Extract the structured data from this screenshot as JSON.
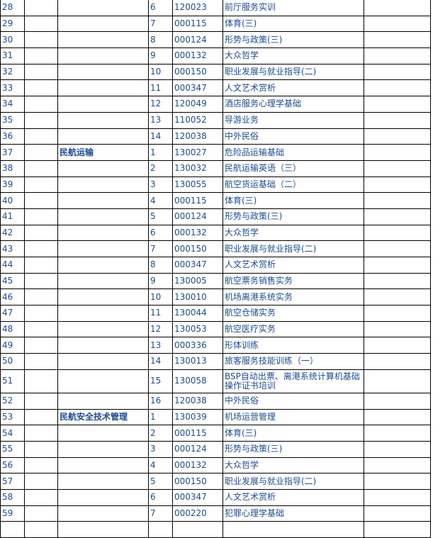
{
  "rows": [
    {
      "no": "28",
      "major": "",
      "seq": "6",
      "code": "120023",
      "course": "前厅服务实训"
    },
    {
      "no": "29",
      "major": "",
      "seq": "7",
      "code": "000115",
      "course": "体育(三)"
    },
    {
      "no": "30",
      "major": "",
      "seq": "8",
      "code": "000124",
      "course": "形势与政策(三)"
    },
    {
      "no": "31",
      "major": "",
      "seq": "9",
      "code": "000132",
      "course": "大众哲学"
    },
    {
      "no": "32",
      "major": "",
      "seq": "10",
      "code": "000150",
      "course": "职业发展与就业指导(二)"
    },
    {
      "no": "33",
      "major": "",
      "seq": "11",
      "code": "000347",
      "course": "人文艺术赏析"
    },
    {
      "no": "34",
      "major": "",
      "seq": "12",
      "code": "120049",
      "course": "酒店服务心理学基础"
    },
    {
      "no": "35",
      "major": "",
      "seq": "13",
      "code": "110052",
      "course": "导游业务"
    },
    {
      "no": "36",
      "major": "",
      "seq": "14",
      "code": "120038",
      "course": "中外民俗"
    },
    {
      "no": "37",
      "major": "民航运输",
      "seq": "1",
      "code": "130027",
      "course": "危险品运输基础"
    },
    {
      "no": "38",
      "major": "",
      "seq": "2",
      "code": "130032",
      "course": "民航运输英语（三）"
    },
    {
      "no": "39",
      "major": "",
      "seq": "3",
      "code": "130055",
      "course": "航空货运基础（二）"
    },
    {
      "no": "40",
      "major": "",
      "seq": "4",
      "code": "000115",
      "course": "体育(三)"
    },
    {
      "no": "41",
      "major": "",
      "seq": "5",
      "code": "000124",
      "course": "形势与政策(三)"
    },
    {
      "no": "42",
      "major": "",
      "seq": "6",
      "code": "000132",
      "course": "大众哲学"
    },
    {
      "no": "43",
      "major": "",
      "seq": "7",
      "code": "000150",
      "course": "职业发展与就业指导(二)"
    },
    {
      "no": "44",
      "major": "",
      "seq": "8",
      "code": "000347",
      "course": "人文艺术赏析"
    },
    {
      "no": "45",
      "major": "",
      "seq": "9",
      "code": "130005",
      "course": "航空票务销售实务"
    },
    {
      "no": "46",
      "major": "",
      "seq": "10",
      "code": "130010",
      "course": "机场离港系统实务"
    },
    {
      "no": "47",
      "major": "",
      "seq": "11",
      "code": "130044",
      "course": "航空仓储实务"
    },
    {
      "no": "48",
      "major": "",
      "seq": "12",
      "code": "130053",
      "course": "航空医疗实务"
    },
    {
      "no": "49",
      "major": "",
      "seq": "13",
      "code": "000336",
      "course": "形体训练"
    },
    {
      "no": "50",
      "major": "",
      "seq": "14",
      "code": "130013",
      "course": "旅客服务技能训练（一）"
    },
    {
      "no": "51",
      "major": "",
      "seq": "15",
      "code": "130058",
      "course": "BSP自动出票、离港系统计算机基础操作证书培训"
    },
    {
      "no": "52",
      "major": "",
      "seq": "16",
      "code": "120038",
      "course": "中外民俗"
    },
    {
      "no": "53",
      "major": "民航安全技术管理",
      "seq": "1",
      "code": "130039",
      "course": "机场运营管理"
    },
    {
      "no": "54",
      "major": "",
      "seq": "2",
      "code": "000115",
      "course": "体育(三)"
    },
    {
      "no": "55",
      "major": "",
      "seq": "3",
      "code": "000124",
      "course": "形势与政策(三)"
    },
    {
      "no": "56",
      "major": "",
      "seq": "4",
      "code": "000132",
      "course": "大众哲学"
    },
    {
      "no": "57",
      "major": "",
      "seq": "5",
      "code": "000150",
      "course": "职业发展与就业指导(二)"
    },
    {
      "no": "58",
      "major": "",
      "seq": "6",
      "code": "000347",
      "course": "人文艺术赏析"
    },
    {
      "no": "59",
      "major": "",
      "seq": "7",
      "code": "000220",
      "course": "犯罪心理学基础"
    },
    {
      "no": "",
      "major": "",
      "seq": "",
      "code": "",
      "course": ""
    }
  ],
  "colors": {
    "text": "#1f4a8f",
    "border": "#000000"
  }
}
